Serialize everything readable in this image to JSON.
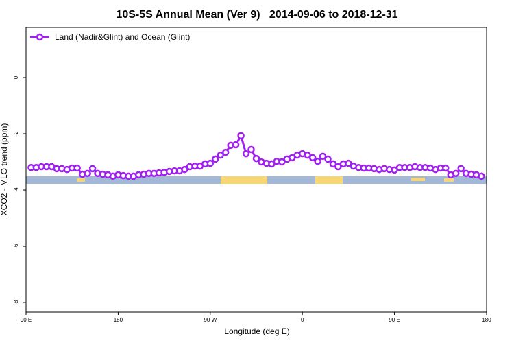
{
  "chart_data": {
    "type": "line",
    "title": "10S-5S Annual Mean (Ver 9)   2014-09-06 to 2018-12-31",
    "xlabel": "Longitude (deg E)",
    "ylabel": "XCO2 - MLO trend (ppm)",
    "xlim": [
      90,
      540
    ],
    "ylim": [
      -8.34,
      1.78
    ],
    "xticks": [
      {
        "value": 90,
        "label": "90 E"
      },
      180,
      {
        "value": 270,
        "label": "90 W"
      },
      {
        "value": 360,
        "label": "0"
      },
      {
        "value": 450,
        "label": "90 E"
      },
      {
        "value": 540,
        "label": "180"
      }
    ],
    "yticks": [
      0,
      -2,
      -4,
      -6,
      -8
    ],
    "legend": "top-left",
    "grid": false,
    "x": [
      95,
      100,
      105,
      110,
      115,
      120,
      125,
      130,
      135,
      140,
      145,
      150,
      155,
      160,
      165,
      170,
      175,
      180,
      185,
      190,
      195,
      200,
      205,
      210,
      215,
      220,
      225,
      230,
      235,
      240,
      245,
      250,
      255,
      260,
      265,
      270,
      275,
      280,
      285,
      290,
      295,
      300,
      305,
      310,
      315,
      320,
      325,
      330,
      335,
      340,
      345,
      350,
      355,
      360,
      365,
      370,
      375,
      380,
      385,
      390,
      395,
      400,
      405,
      410,
      415,
      420,
      425,
      430,
      435,
      440,
      445,
      450,
      455,
      460,
      465,
      470,
      475,
      480,
      485,
      490,
      495,
      500,
      505,
      510,
      515,
      520,
      525,
      530,
      535
    ],
    "series": [
      {
        "name": "Land (Nadir&Glint) and Ocean (Glint)",
        "color": "#a020f0",
        "values": [
          -3.2,
          -3.2,
          -3.17,
          -3.17,
          -3.17,
          -3.24,
          -3.24,
          -3.27,
          -3.22,
          -3.22,
          -3.44,
          -3.41,
          -3.24,
          -3.41,
          -3.44,
          -3.46,
          -3.51,
          -3.46,
          -3.49,
          -3.51,
          -3.51,
          -3.46,
          -3.44,
          -3.41,
          -3.41,
          -3.39,
          -3.37,
          -3.34,
          -3.32,
          -3.32,
          -3.27,
          -3.17,
          -3.15,
          -3.15,
          -3.07,
          -3.05,
          -2.9,
          -2.76,
          -2.66,
          -2.41,
          -2.39,
          -2.07,
          -2.71,
          -2.56,
          -2.88,
          -3.0,
          -3.05,
          -3.07,
          -2.98,
          -3.0,
          -2.9,
          -2.85,
          -2.76,
          -2.71,
          -2.76,
          -2.85,
          -2.98,
          -2.8,
          -2.9,
          -3.07,
          -3.17,
          -3.07,
          -3.05,
          -3.15,
          -3.2,
          -3.22,
          -3.22,
          -3.24,
          -3.27,
          -3.24,
          -3.27,
          -3.29,
          -3.2,
          -3.2,
          -3.2,
          -3.17,
          -3.2,
          -3.2,
          -3.22,
          -3.27,
          -3.22,
          -3.22,
          -3.46,
          -3.41,
          -3.24,
          -3.41,
          -3.44,
          -3.46,
          -3.51
        ]
      }
    ]
  }
}
